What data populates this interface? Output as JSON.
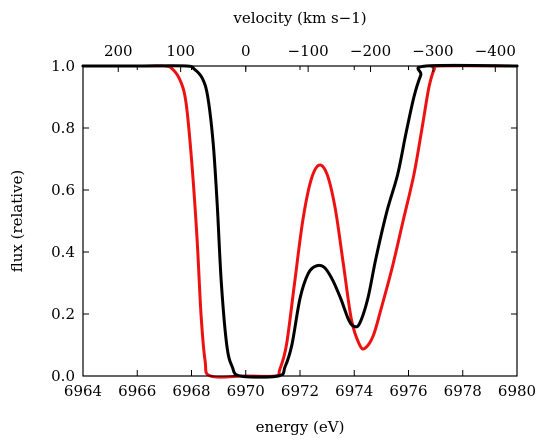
{
  "chart_data": {
    "type": "line",
    "xlabel": "energy (eV)",
    "ylabel": "flux (relative)",
    "top_axis_label": "velocity (km s−1)",
    "xlim": [
      6964,
      6980
    ],
    "ylim": [
      0.0,
      1.0
    ],
    "x_ticks": [
      "6964",
      "6966",
      "6968",
      "6970",
      "6972",
      "6974",
      "6976",
      "6978",
      "6980"
    ],
    "y_ticks": [
      "0.0",
      "0.2",
      "0.4",
      "0.6",
      "0.8",
      "1.0"
    ],
    "top_ticks": [
      {
        "label": "200",
        "energy": 6965.3
      },
      {
        "label": "100",
        "energy": 6967.6
      },
      {
        "label": "0",
        "energy": 6970.0
      },
      {
        "label": "−100",
        "energy": 6972.3
      },
      {
        "label": "−200",
        "energy": 6974.6
      },
      {
        "label": "−300",
        "energy": 6976.9
      },
      {
        "label": "−400",
        "energy": 6979.2
      }
    ],
    "grid": false,
    "legend": "none",
    "series": [
      {
        "color": "#ee1111",
        "points": [
          [
            6964,
            1.0
          ],
          [
            6966,
            1.0
          ],
          [
            6967.0,
            1.0
          ],
          [
            6967.3,
            0.99
          ],
          [
            6967.6,
            0.95
          ],
          [
            6967.8,
            0.88
          ],
          [
            6968.0,
            0.7
          ],
          [
            6968.2,
            0.45
          ],
          [
            6968.35,
            0.2
          ],
          [
            6968.5,
            0.05
          ],
          [
            6968.7,
            0.0
          ],
          [
            6970,
            0.0
          ],
          [
            6971.1,
            0.0
          ],
          [
            6971.25,
            0.02
          ],
          [
            6971.5,
            0.1
          ],
          [
            6971.8,
            0.3
          ],
          [
            6972.1,
            0.5
          ],
          [
            6972.4,
            0.63
          ],
          [
            6972.7,
            0.68
          ],
          [
            6973.0,
            0.65
          ],
          [
            6973.3,
            0.54
          ],
          [
            6973.6,
            0.36
          ],
          [
            6973.9,
            0.18
          ],
          [
            6974.2,
            0.1
          ],
          [
            6974.4,
            0.09
          ],
          [
            6974.7,
            0.13
          ],
          [
            6975.0,
            0.22
          ],
          [
            6975.4,
            0.35
          ],
          [
            6975.8,
            0.5
          ],
          [
            6976.2,
            0.65
          ],
          [
            6976.5,
            0.8
          ],
          [
            6976.75,
            0.93
          ],
          [
            6976.95,
            0.99
          ],
          [
            6977.1,
            1.0
          ],
          [
            6980,
            1.0
          ]
        ]
      },
      {
        "color": "#000000",
        "points": [
          [
            6964,
            1.0
          ],
          [
            6966,
            1.0
          ],
          [
            6967.8,
            1.0
          ],
          [
            6968.1,
            0.99
          ],
          [
            6968.4,
            0.96
          ],
          [
            6968.6,
            0.9
          ],
          [
            6968.8,
            0.75
          ],
          [
            6968.95,
            0.55
          ],
          [
            6969.1,
            0.3
          ],
          [
            6969.3,
            0.1
          ],
          [
            6969.5,
            0.03
          ],
          [
            6969.8,
            0.0
          ],
          [
            6971.2,
            0.0
          ],
          [
            6971.45,
            0.03
          ],
          [
            6971.7,
            0.1
          ],
          [
            6972.0,
            0.25
          ],
          [
            6972.3,
            0.33
          ],
          [
            6972.6,
            0.355
          ],
          [
            6972.9,
            0.35
          ],
          [
            6973.2,
            0.31
          ],
          [
            6973.5,
            0.25
          ],
          [
            6973.8,
            0.18
          ],
          [
            6974.0,
            0.16
          ],
          [
            6974.2,
            0.17
          ],
          [
            6974.5,
            0.25
          ],
          [
            6974.8,
            0.38
          ],
          [
            6975.2,
            0.53
          ],
          [
            6975.6,
            0.65
          ],
          [
            6975.9,
            0.78
          ],
          [
            6976.2,
            0.9
          ],
          [
            6976.45,
            0.97
          ],
          [
            6976.65,
            1.0
          ],
          [
            6980,
            1.0
          ]
        ]
      }
    ]
  }
}
